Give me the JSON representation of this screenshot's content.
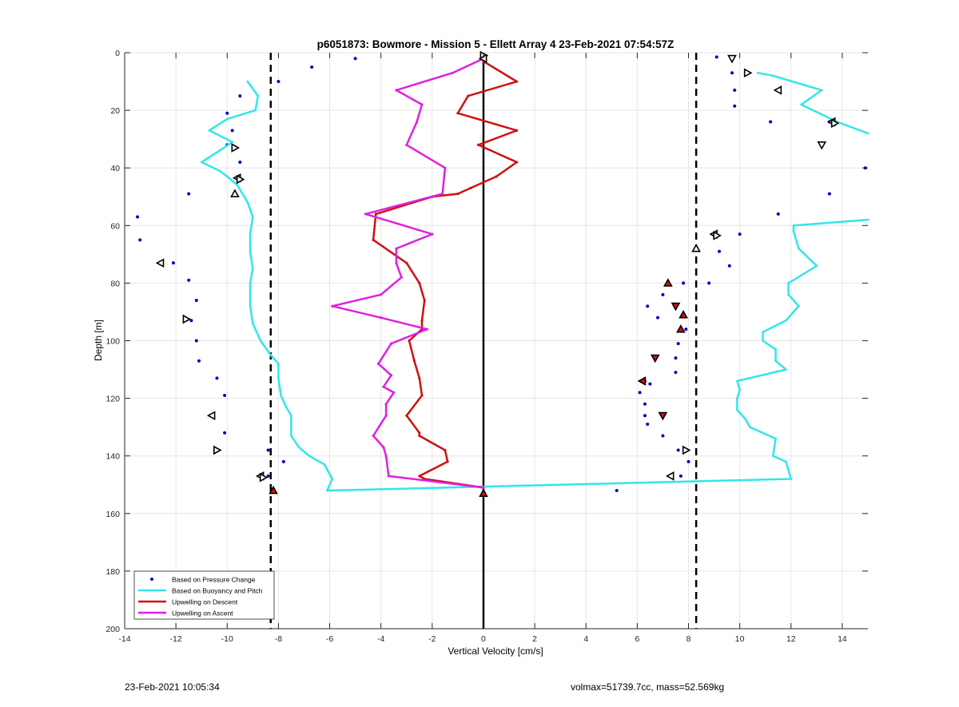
{
  "footer": {
    "timestamp": "23-Feb-2021 10:05:34",
    "info": "volmax=51739.7cc, mass=52.569kg"
  },
  "chart_data": {
    "type": "line",
    "title": "p6051873: Bowmore - Mission 5 - Ellett Array 4 23-Feb-2021 07:54:57Z",
    "xlabel": "Vertical Velocity [cm/s]",
    "ylabel": "Depth [m]",
    "xlim": [
      -14,
      15
    ],
    "ylim": [
      0,
      200
    ],
    "y_reversed": true,
    "grid": true,
    "xticks": [
      -14,
      -12,
      -10,
      -8,
      -6,
      -4,
      -2,
      0,
      2,
      4,
      6,
      8,
      10,
      12,
      14
    ],
    "yticks": [
      0,
      20,
      40,
      60,
      80,
      100,
      120,
      140,
      160,
      180,
      200
    ],
    "reference_lines": [
      {
        "x": -8.3,
        "style": "dashed",
        "color": "#000000"
      },
      {
        "x": 8.3,
        "style": "dashed",
        "color": "#000000"
      },
      {
        "x": 0,
        "style": "solid",
        "color": "#000000"
      }
    ],
    "legend": {
      "position": "bottom-left",
      "entries": [
        {
          "label": "Based on Pressure Change",
          "color": "#0000cc",
          "kind": "dot"
        },
        {
          "label": "Based on Buoyancy and Pitch",
          "color": "#33e6e6",
          "kind": "line"
        },
        {
          "label": "Upwelling on Descent",
          "color": "#d01010",
          "kind": "line"
        },
        {
          "label": "Upwelling on Ascent",
          "color": "#e020e0",
          "kind": "line"
        }
      ]
    },
    "series": [
      {
        "name": "Based on Pressure Change",
        "kind": "scatter",
        "color": "#0000cc",
        "points": [
          [
            -5.0,
            2
          ],
          [
            -6.7,
            5
          ],
          [
            -8.0,
            10
          ],
          [
            -9.5,
            15
          ],
          [
            -10.0,
            21
          ],
          [
            -9.8,
            27
          ],
          [
            -10.0,
            32
          ],
          [
            -9.5,
            38
          ],
          [
            -9.5,
            44
          ],
          [
            -11.5,
            49
          ],
          [
            -13.5,
            57
          ],
          [
            -13.4,
            65
          ],
          [
            -12.1,
            73
          ],
          [
            -11.5,
            79
          ],
          [
            -11.2,
            86
          ],
          [
            -11.4,
            93
          ],
          [
            -11.2,
            100
          ],
          [
            -11.1,
            107
          ],
          [
            -10.4,
            113
          ],
          [
            -10.1,
            119
          ],
          [
            -10.6,
            126
          ],
          [
            -10.1,
            132
          ],
          [
            -8.4,
            138
          ],
          [
            -7.8,
            142
          ],
          [
            -8.4,
            147
          ],
          [
            -8.2,
            152
          ],
          [
            0.0,
            153
          ],
          [
            9.1,
            1.5
          ],
          [
            9.7,
            7
          ],
          [
            9.8,
            13
          ],
          [
            9.8,
            18.5
          ],
          [
            11.2,
            24
          ],
          [
            13.5,
            24
          ],
          [
            14.9,
            40
          ],
          [
            13.5,
            49
          ],
          [
            11.5,
            56
          ],
          [
            10.0,
            63
          ],
          [
            9.2,
            69
          ],
          [
            9.6,
            74
          ],
          [
            8.8,
            80
          ],
          [
            7.8,
            80
          ],
          [
            7.0,
            84
          ],
          [
            6.4,
            88
          ],
          [
            7.5,
            88
          ],
          [
            6.8,
            92
          ],
          [
            7.9,
            96
          ],
          [
            7.6,
            101
          ],
          [
            7.5,
            106
          ],
          [
            7.5,
            111
          ],
          [
            6.3,
            114
          ],
          [
            6.5,
            115
          ],
          [
            6.1,
            118
          ],
          [
            6.3,
            122
          ],
          [
            6.3,
            126
          ],
          [
            7.0,
            126
          ],
          [
            6.4,
            129
          ],
          [
            7.0,
            133
          ],
          [
            7.6,
            138
          ],
          [
            8.0,
            142
          ],
          [
            7.7,
            147
          ],
          [
            5.2,
            152
          ]
        ]
      },
      {
        "name": "Based on Buoyancy and Pitch",
        "kind": "line",
        "color": "#33e6e6",
        "segments": [
          [
            [
              -9.2,
              10
            ],
            [
              -8.8,
              15
            ],
            [
              -8.9,
              20
            ],
            [
              -10.0,
              23
            ],
            [
              -10.7,
              27
            ],
            [
              -9.8,
              31
            ],
            [
              -10.3,
              34
            ],
            [
              -11.0,
              38
            ],
            [
              -10.3,
              41
            ],
            [
              -10.0,
              43
            ],
            [
              -9.6,
              46
            ],
            [
              -9.2,
              52
            ],
            [
              -9.0,
              57
            ],
            [
              -9.1,
              63
            ],
            [
              -9.1,
              69
            ],
            [
              -9.0,
              75
            ],
            [
              -9.1,
              80
            ],
            [
              -9.1,
              88
            ],
            [
              -9.0,
              94
            ],
            [
              -8.7,
              100
            ],
            [
              -8.3,
              105
            ],
            [
              -8.0,
              108
            ],
            [
              -8.0,
              113
            ],
            [
              -7.9,
              119
            ],
            [
              -7.7,
              123
            ],
            [
              -7.5,
              126
            ],
            [
              -7.5,
              133
            ],
            [
              -7.2,
              137
            ],
            [
              -6.8,
              140
            ],
            [
              -6.2,
              143
            ],
            [
              -5.9,
              148
            ],
            [
              -6.1,
              152
            ],
            [
              -6.0,
              152
            ],
            [
              12.0,
              148
            ],
            [
              11.8,
              142
            ],
            [
              11.3,
              140
            ],
            [
              11.4,
              134
            ],
            [
              10.4,
              130
            ],
            [
              10.2,
              127
            ],
            [
              9.9,
              124
            ],
            [
              9.9,
              120
            ],
            [
              10.0,
              117
            ],
            [
              9.9,
              114
            ],
            [
              11.8,
              110
            ],
            [
              11.4,
              107
            ],
            [
              11.4,
              103
            ],
            [
              10.9,
              100
            ],
            [
              10.9,
              97
            ],
            [
              11.8,
              93
            ],
            [
              12.3,
              88
            ],
            [
              11.9,
              84
            ],
            [
              11.9,
              80
            ],
            [
              13.0,
              74
            ],
            [
              12.3,
              68
            ],
            [
              12.1,
              62
            ],
            [
              12.1,
              60
            ],
            [
              15.0,
              58
            ]
          ],
          [
            [
              10.7,
              7
            ],
            [
              11.3,
              8
            ],
            [
              13.2,
              13
            ],
            [
              12.4,
              18
            ],
            [
              13.8,
              24
            ],
            [
              15.0,
              28
            ]
          ]
        ]
      },
      {
        "name": "Upwelling on Descent",
        "kind": "line",
        "color": "#d01010",
        "points": [
          [
            0.0,
            3
          ],
          [
            1.3,
            10
          ],
          [
            -0.6,
            15
          ],
          [
            -1.0,
            21
          ],
          [
            1.3,
            27
          ],
          [
            -0.2,
            32
          ],
          [
            1.3,
            38
          ],
          [
            0.5,
            43
          ],
          [
            -0.5,
            47
          ],
          [
            -1.0,
            49
          ],
          [
            -2.0,
            50
          ],
          [
            -4.2,
            56
          ],
          [
            -4.3,
            65
          ],
          [
            -3.0,
            73
          ],
          [
            -2.5,
            80
          ],
          [
            -2.3,
            86
          ],
          [
            -2.4,
            93
          ],
          [
            -2.4,
            96
          ],
          [
            -2.9,
            100
          ],
          [
            -2.7,
            107
          ],
          [
            -2.5,
            113
          ],
          [
            -2.4,
            119
          ],
          [
            -3.0,
            126
          ],
          [
            -2.5,
            132
          ],
          [
            -2.5,
            133
          ],
          [
            -1.5,
            138
          ],
          [
            -1.4,
            142
          ],
          [
            -2.5,
            147
          ],
          [
            -2.3,
            148
          ],
          [
            0.0,
            151
          ]
        ]
      },
      {
        "name": "Upwelling on Ascent",
        "kind": "line",
        "color": "#e020e0",
        "points": [
          [
            0.0,
            2
          ],
          [
            -1.2,
            7
          ],
          [
            -3.4,
            13
          ],
          [
            -2.4,
            18
          ],
          [
            -2.6,
            24
          ],
          [
            -3.0,
            32
          ],
          [
            -1.5,
            40
          ],
          [
            -1.6,
            49
          ],
          [
            -4.6,
            56
          ],
          [
            -2.0,
            63
          ],
          [
            -3.4,
            68
          ],
          [
            -3.4,
            73
          ],
          [
            -3.2,
            78
          ],
          [
            -4.0,
            84
          ],
          [
            -5.9,
            88
          ],
          [
            -4.0,
            92
          ],
          [
            -2.2,
            96
          ],
          [
            -3.6,
            101
          ],
          [
            -4.1,
            108
          ],
          [
            -3.6,
            112
          ],
          [
            -3.9,
            116
          ],
          [
            -3.5,
            118
          ],
          [
            -3.8,
            122
          ],
          [
            -3.8,
            126
          ],
          [
            -4.3,
            133
          ],
          [
            -3.9,
            137
          ],
          [
            -3.8,
            140
          ],
          [
            -3.7,
            147
          ],
          [
            0.0,
            151
          ]
        ]
      },
      {
        "name": "Descent markers",
        "kind": "markers",
        "points": [
          {
            "x": 7.2,
            "y": 80,
            "shape": "tri-up",
            "fill": "#d01010"
          },
          {
            "x": 7.5,
            "y": 88,
            "shape": "tri-down",
            "fill": "#d01010"
          },
          {
            "x": 7.8,
            "y": 91,
            "shape": "tri-up",
            "fill": "#d01010"
          },
          {
            "x": 7.7,
            "y": 96,
            "shape": "tri-up",
            "fill": "#d01010"
          },
          {
            "x": 6.7,
            "y": 106,
            "shape": "tri-down",
            "fill": "#d01010"
          },
          {
            "x": 6.2,
            "y": 114,
            "shape": "tri-left",
            "fill": "#d01010"
          },
          {
            "x": 7.0,
            "y": 126,
            "shape": "tri-down",
            "fill": "#d01010"
          },
          {
            "x": -8.2,
            "y": 152,
            "shape": "tri-up",
            "fill": "#d01010"
          },
          {
            "x": 0.0,
            "y": 153,
            "shape": "tri-up",
            "fill": "#d01010"
          },
          {
            "x": 0.0,
            "y": 1,
            "shape": "tri-right",
            "fill": "#ffffff"
          },
          {
            "x": 0.0,
            "y": 2,
            "shape": "tri-left",
            "fill": "#ffffff"
          },
          {
            "x": 9.7,
            "y": 2,
            "shape": "tri-down",
            "fill": "#ffffff"
          },
          {
            "x": 10.3,
            "y": 7,
            "shape": "tri-right",
            "fill": "#ffffff"
          },
          {
            "x": 11.5,
            "y": 13,
            "shape": "tri-left",
            "fill": "#ffffff"
          },
          {
            "x": 13.6,
            "y": 24,
            "shape": "tri-left",
            "fill": "#ffffff"
          },
          {
            "x": 13.7,
            "y": 24.5,
            "shape": "tri-right",
            "fill": "#ffffff"
          },
          {
            "x": 13.2,
            "y": 32,
            "shape": "tri-down",
            "fill": "#ffffff"
          },
          {
            "x": 9.0,
            "y": 63,
            "shape": "tri-left",
            "fill": "#ffffff"
          },
          {
            "x": 9.1,
            "y": 63.5,
            "shape": "tri-right",
            "fill": "#ffffff"
          },
          {
            "x": 8.3,
            "y": 68,
            "shape": "tri-up",
            "fill": "#ffffff"
          },
          {
            "x": 7.9,
            "y": 138,
            "shape": "tri-right",
            "fill": "#ffffff"
          },
          {
            "x": 7.3,
            "y": 147,
            "shape": "tri-left",
            "fill": "#ffffff"
          },
          {
            "x": -9.7,
            "y": 33,
            "shape": "tri-right",
            "fill": "#ffffff"
          },
          {
            "x": -9.6,
            "y": 43.5,
            "shape": "tri-left",
            "fill": "#ffffff"
          },
          {
            "x": -9.5,
            "y": 44,
            "shape": "tri-right",
            "fill": "#ffffff"
          },
          {
            "x": -9.7,
            "y": 49,
            "shape": "tri-up",
            "fill": "#ffffff"
          },
          {
            "x": -12.6,
            "y": 73,
            "shape": "tri-left",
            "fill": "#ffffff"
          },
          {
            "x": -11.6,
            "y": 92.5,
            "shape": "tri-right",
            "fill": "#ffffff"
          },
          {
            "x": -10.6,
            "y": 126,
            "shape": "tri-left",
            "fill": "#ffffff"
          },
          {
            "x": -10.4,
            "y": 138,
            "shape": "tri-right",
            "fill": "#ffffff"
          },
          {
            "x": -8.7,
            "y": 147,
            "shape": "tri-left",
            "fill": "#ffffff"
          },
          {
            "x": -8.6,
            "y": 147.5,
            "shape": "tri-right",
            "fill": "#ffffff"
          }
        ]
      }
    ]
  }
}
